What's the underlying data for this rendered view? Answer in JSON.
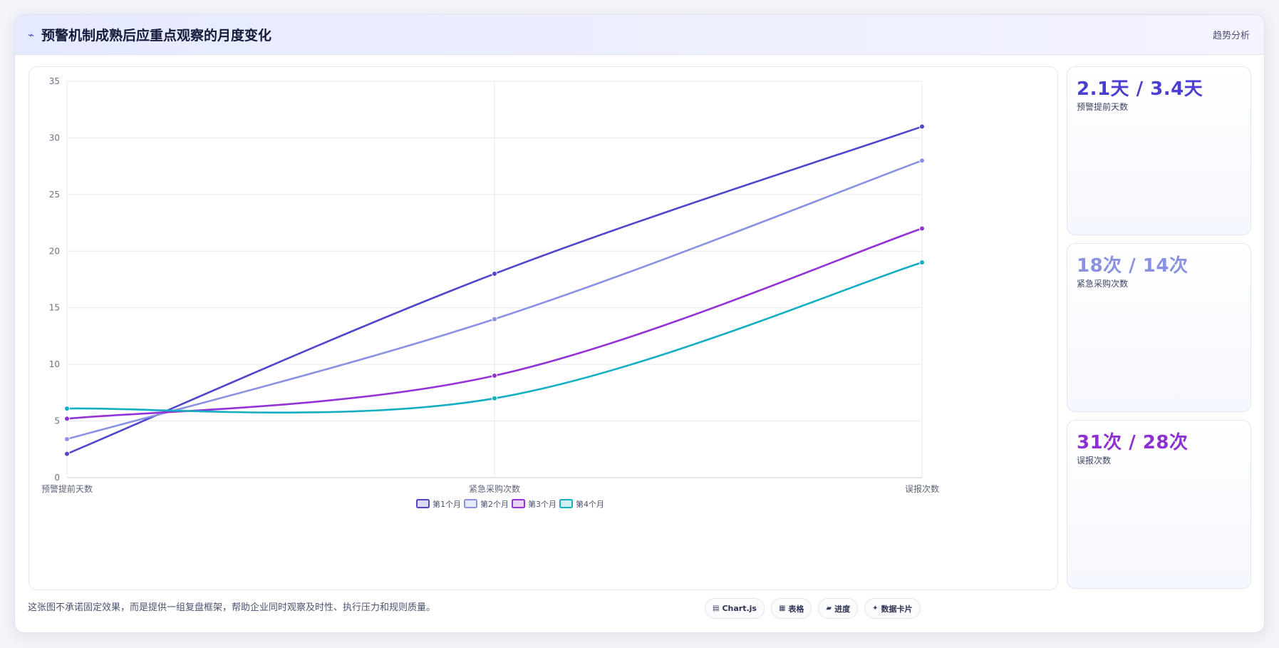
{
  "header": {
    "icon": "chart-trend-icon",
    "icon_glyph": "⌁",
    "title": "预警机制成熟后应重点观察的月度变化",
    "tag": "趋势分析"
  },
  "chart_data": {
    "type": "line",
    "categories": [
      "预警提前天数",
      "紧急采购次数",
      "误报次数"
    ],
    "series": [
      {
        "name": "第1个月",
        "values": [
          2.1,
          18,
          31
        ],
        "color": "#5046cc"
      },
      {
        "name": "第2个月",
        "values": [
          3.4,
          14,
          28
        ],
        "color": "#8a91e2"
      },
      {
        "name": "第3个月",
        "values": [
          5.2,
          9,
          22
        ],
        "color": "#9333d6"
      },
      {
        "name": "第4个月",
        "values": [
          6.1,
          7,
          19
        ],
        "color": "#14aec3"
      }
    ],
    "ylim": [
      0,
      35
    ],
    "yticks": [
      0,
      5,
      10,
      15,
      20,
      25,
      30,
      35
    ],
    "grid": true,
    "legend": "bottom",
    "title": "",
    "xlabel": "",
    "ylabel": ""
  },
  "stats": [
    {
      "value": "2.1天 / 3.4天",
      "label": "预警提前天数",
      "color": "#4a3fd0"
    },
    {
      "value": "18次 / 14次",
      "label": "紧急采购次数",
      "color": "#8a91e2"
    },
    {
      "value": "31次 / 28次",
      "label": "误报次数",
      "color": "#8e2fd4"
    }
  ],
  "footer": {
    "text": "这张图不承诺固定效果，而是提供一组复盘框架，帮助企业同时观察及时性、执行压力和规则质量。",
    "pills": [
      {
        "icon": "chart-icon",
        "glyph": "▤",
        "label": "Chart.js"
      },
      {
        "icon": "table-icon",
        "glyph": "▦",
        "label": "表格"
      },
      {
        "icon": "progress-icon",
        "glyph": "▰",
        "label": "进度"
      },
      {
        "icon": "data-card-icon",
        "glyph": "✦",
        "label": "数据卡片"
      }
    ]
  }
}
